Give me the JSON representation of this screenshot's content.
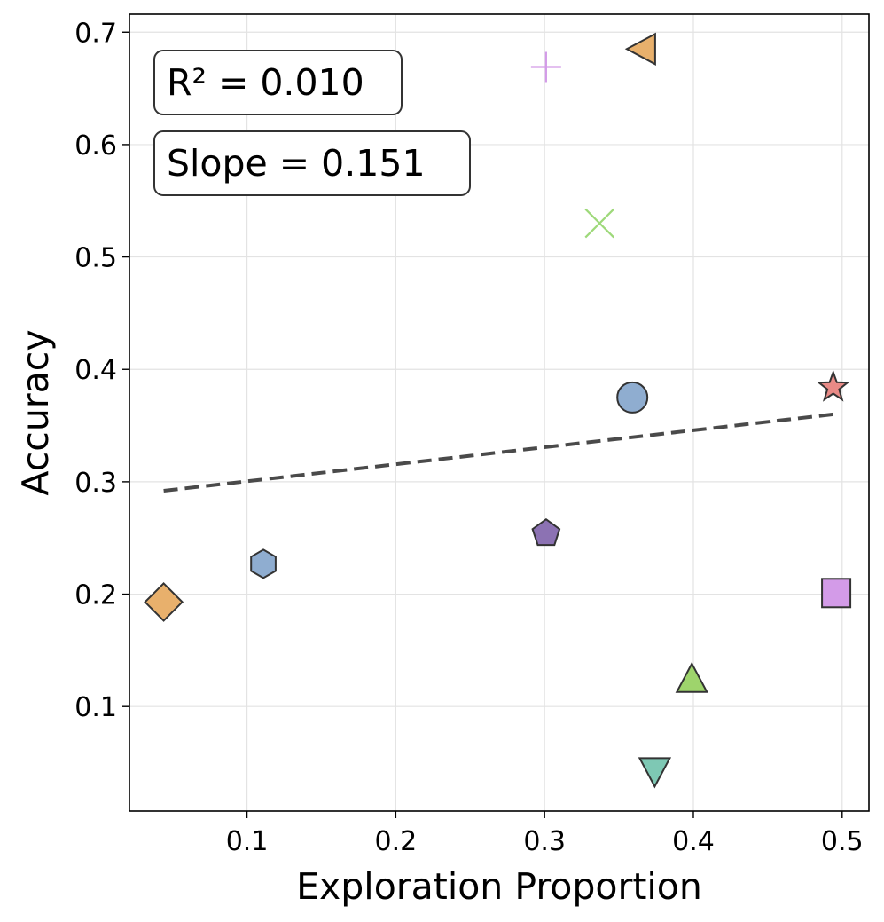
{
  "chart_data": {
    "type": "scatter",
    "xlabel": "Exploration Proportion",
    "ylabel": "Accuracy",
    "xlim": [
      0.021,
      0.518
    ],
    "ylim": [
      0.007,
      0.716
    ],
    "xticks": [
      "0.1",
      "0.2",
      "0.3",
      "0.4",
      "0.5"
    ],
    "yticks": [
      "0.1",
      "0.2",
      "0.3",
      "0.4",
      "0.5",
      "0.6",
      "0.7"
    ],
    "grid": true,
    "annotations": {
      "r2": "R² = 0.010",
      "slope": "Slope = 0.151"
    },
    "trendline": {
      "x": [
        0.044,
        0.494
      ],
      "y": [
        0.292,
        0.36
      ],
      "color": "#4a4a4a",
      "style": "dashed"
    },
    "points": [
      {
        "x": 0.044,
        "y": 0.193,
        "marker": "diamond",
        "color": "#e8b06c"
      },
      {
        "x": 0.111,
        "y": 0.227,
        "marker": "hexagon",
        "color": "#8fadd0"
      },
      {
        "x": 0.301,
        "y": 0.254,
        "marker": "pentagon",
        "color": "#8c72b3"
      },
      {
        "x": 0.301,
        "y": 0.669,
        "marker": "plus",
        "color": "#d39be8"
      },
      {
        "x": 0.337,
        "y": 0.53,
        "marker": "x",
        "color": "#9ed97a"
      },
      {
        "x": 0.359,
        "y": 0.375,
        "marker": "circle",
        "color": "#8fadd0"
      },
      {
        "x": 0.366,
        "y": 0.685,
        "marker": "triangle-left",
        "color": "#e8b06c"
      },
      {
        "x": 0.374,
        "y": 0.043,
        "marker": "triangle-down",
        "color": "#7ec8b4"
      },
      {
        "x": 0.399,
        "y": 0.124,
        "marker": "triangle-up",
        "color": "#9ed46c"
      },
      {
        "x": 0.494,
        "y": 0.384,
        "marker": "star",
        "color": "#e88a86"
      },
      {
        "x": 0.496,
        "y": 0.201,
        "marker": "square",
        "color": "#d39be8"
      }
    ]
  }
}
